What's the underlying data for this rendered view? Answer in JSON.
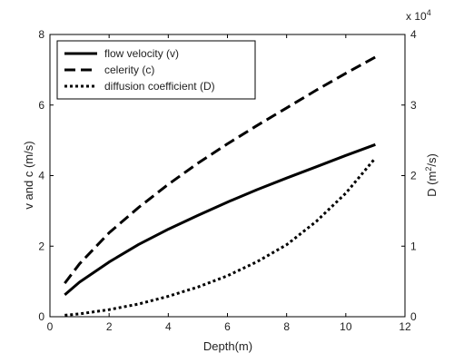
{
  "chart_data": {
    "type": "line",
    "xlabel": "Depth(m)",
    "ylabel_left": "v and c (m/s)",
    "ylabel_right_text": "D (m",
    "ylabel_right_sup": "2",
    "ylabel_right_tail": "/s)",
    "right_multiplier_base": "x 10",
    "right_multiplier_exp": "4",
    "xlim": [
      0,
      12
    ],
    "ylim_left": [
      0,
      8
    ],
    "ylim_right": [
      0,
      4
    ],
    "xticks": [
      "0",
      "2",
      "4",
      "6",
      "8",
      "10",
      "12"
    ],
    "yticks_left": [
      "0",
      "2",
      "4",
      "6",
      "8"
    ],
    "yticks_right": [
      "0",
      "1",
      "2",
      "3",
      "4"
    ],
    "grid": false,
    "legend_position": "top-left",
    "series": [
      {
        "name": "flow velocity (v)",
        "axis": "left",
        "style": "solid",
        "color": "#000000",
        "x": [
          0.5,
          1,
          2,
          3,
          4,
          5,
          6,
          7,
          8,
          9,
          10,
          11
        ],
        "y": [
          0.62,
          0.98,
          1.55,
          2.05,
          2.48,
          2.87,
          3.25,
          3.6,
          3.93,
          4.25,
          4.57,
          4.88
        ]
      },
      {
        "name": "celerity (c)",
        "axis": "left",
        "style": "dashed",
        "color": "#000000",
        "x": [
          0.5,
          1,
          2,
          3,
          4,
          5,
          6,
          7,
          8,
          9,
          10,
          11
        ],
        "y": [
          0.95,
          1.5,
          2.38,
          3.1,
          3.75,
          4.35,
          4.9,
          5.42,
          5.92,
          6.42,
          6.9,
          7.36
        ]
      },
      {
        "name": "diffusion coefficient (D)",
        "axis": "right",
        "style": "dotted",
        "color": "#000000",
        "x": [
          0.5,
          1,
          2,
          3,
          4,
          5,
          6,
          7,
          8,
          9,
          10,
          11
        ],
        "y": [
          200,
          400,
          1000,
          1800,
          2900,
          4200,
          5800,
          7800,
          10200,
          13500,
          17500,
          22500
        ],
        "y_scaled": [
          0.02,
          0.04,
          0.1,
          0.18,
          0.29,
          0.42,
          0.58,
          0.78,
          1.02,
          1.35,
          1.75,
          2.25
        ]
      }
    ]
  }
}
